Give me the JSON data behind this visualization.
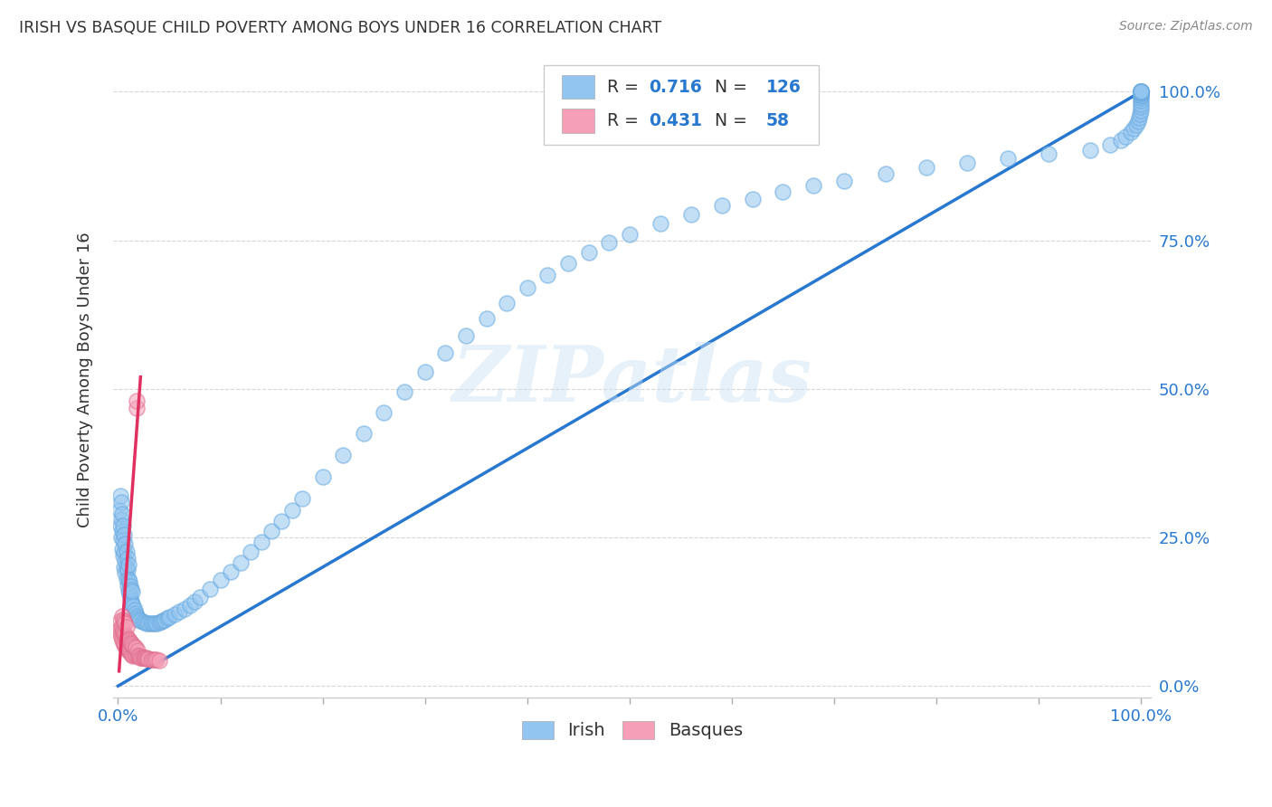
{
  "title": "IRISH VS BASQUE CHILD POVERTY AMONG BOYS UNDER 16 CORRELATION CHART",
  "source": "Source: ZipAtlas.com",
  "ylabel": "Child Poverty Among Boys Under 16",
  "irish_color": "#92c5f0",
  "irish_edge_color": "#6aaae0",
  "basque_color": "#f5a0b8",
  "basque_edge_color": "#e07090",
  "irish_line_color": "#2878d0",
  "basque_line_color": "#e03060",
  "ref_line_color": "#d0c8d8",
  "text_color_blue": "#2878d0",
  "text_color_dark": "#333333",
  "text_color_gray": "#888888",
  "irish_R": "0.716",
  "irish_N": "126",
  "basque_R": "0.431",
  "basque_N": "58",
  "legend_label_irish": "Irish",
  "legend_label_basque": "Basques",
  "watermark": "ZIPatlas",
  "irish_x": [
    0.001,
    0.002,
    0.002,
    0.003,
    0.003,
    0.003,
    0.004,
    0.004,
    0.004,
    0.005,
    0.005,
    0.005,
    0.006,
    0.006,
    0.006,
    0.007,
    0.007,
    0.007,
    0.008,
    0.008,
    0.008,
    0.009,
    0.009,
    0.009,
    0.01,
    0.01,
    0.01,
    0.011,
    0.011,
    0.012,
    0.012,
    0.013,
    0.013,
    0.014,
    0.014,
    0.015,
    0.016,
    0.017,
    0.018,
    0.019,
    0.02,
    0.022,
    0.024,
    0.026,
    0.028,
    0.03,
    0.032,
    0.034,
    0.036,
    0.038,
    0.04,
    0.042,
    0.044,
    0.046,
    0.048,
    0.05,
    0.055,
    0.06,
    0.065,
    0.07,
    0.075,
    0.08,
    0.09,
    0.1,
    0.11,
    0.12,
    0.13,
    0.14,
    0.15,
    0.16,
    0.17,
    0.18,
    0.2,
    0.22,
    0.24,
    0.26,
    0.28,
    0.3,
    0.32,
    0.34,
    0.36,
    0.38,
    0.4,
    0.42,
    0.44,
    0.46,
    0.48,
    0.5,
    0.53,
    0.56,
    0.59,
    0.62,
    0.65,
    0.68,
    0.71,
    0.75,
    0.79,
    0.83,
    0.87,
    0.91,
    0.95,
    0.97,
    0.98,
    0.985,
    0.99,
    0.993,
    0.995,
    0.997,
    0.998,
    0.999,
    1.0,
    1.0,
    1.0,
    1.0,
    1.0,
    1.0,
    1.0,
    1.0,
    1.0,
    1.0,
    1.0,
    1.0,
    1.0,
    1.0,
    1.0,
    1.0
  ],
  "irish_y": [
    0.295,
    0.27,
    0.32,
    0.25,
    0.28,
    0.31,
    0.23,
    0.26,
    0.29,
    0.22,
    0.245,
    0.27,
    0.2,
    0.225,
    0.255,
    0.19,
    0.21,
    0.24,
    0.18,
    0.2,
    0.225,
    0.17,
    0.195,
    0.215,
    0.16,
    0.18,
    0.205,
    0.155,
    0.175,
    0.148,
    0.168,
    0.142,
    0.162,
    0.138,
    0.158,
    0.135,
    0.128,
    0.122,
    0.118,
    0.115,
    0.112,
    0.11,
    0.108,
    0.107,
    0.106,
    0.105,
    0.105,
    0.105,
    0.105,
    0.106,
    0.107,
    0.108,
    0.11,
    0.112,
    0.114,
    0.116,
    0.12,
    0.125,
    0.13,
    0.136,
    0.142,
    0.15,
    0.163,
    0.178,
    0.192,
    0.208,
    0.225,
    0.242,
    0.26,
    0.278,
    0.296,
    0.315,
    0.352,
    0.389,
    0.425,
    0.46,
    0.495,
    0.528,
    0.56,
    0.59,
    0.618,
    0.645,
    0.67,
    0.692,
    0.712,
    0.73,
    0.746,
    0.76,
    0.778,
    0.794,
    0.808,
    0.82,
    0.832,
    0.842,
    0.85,
    0.862,
    0.872,
    0.88,
    0.888,
    0.895,
    0.902,
    0.91,
    0.918,
    0.925,
    0.932,
    0.938,
    0.944,
    0.95,
    0.956,
    0.962,
    0.968,
    0.974,
    0.98,
    0.985,
    0.99,
    0.993,
    0.995,
    0.997,
    0.998,
    0.999,
    1.0,
    1.0,
    1.0,
    1.0,
    1.0,
    1.0
  ],
  "basque_x": [
    0.001,
    0.002,
    0.002,
    0.003,
    0.003,
    0.004,
    0.004,
    0.004,
    0.005,
    0.005,
    0.005,
    0.006,
    0.006,
    0.006,
    0.007,
    0.007,
    0.007,
    0.008,
    0.008,
    0.008,
    0.009,
    0.009,
    0.01,
    0.01,
    0.011,
    0.011,
    0.012,
    0.012,
    0.013,
    0.013,
    0.014,
    0.014,
    0.015,
    0.015,
    0.016,
    0.016,
    0.017,
    0.017,
    0.018,
    0.018,
    0.019,
    0.019,
    0.02,
    0.021,
    0.022,
    0.023,
    0.024,
    0.025,
    0.026,
    0.027,
    0.028,
    0.029,
    0.03,
    0.032,
    0.034,
    0.036,
    0.038,
    0.04
  ],
  "basque_y": [
    0.095,
    0.088,
    0.11,
    0.082,
    0.1,
    0.078,
    0.095,
    0.118,
    0.074,
    0.092,
    0.112,
    0.07,
    0.088,
    0.108,
    0.067,
    0.085,
    0.105,
    0.064,
    0.082,
    0.1,
    0.062,
    0.08,
    0.06,
    0.078,
    0.058,
    0.076,
    0.056,
    0.074,
    0.054,
    0.072,
    0.052,
    0.07,
    0.05,
    0.068,
    0.052,
    0.066,
    0.052,
    0.064,
    0.468,
    0.48,
    0.052,
    0.06,
    0.05,
    0.05,
    0.048,
    0.048,
    0.048,
    0.047,
    0.047,
    0.047,
    0.046,
    0.046,
    0.046,
    0.045,
    0.045,
    0.044,
    0.044,
    0.043
  ],
  "irish_line_x": [
    0.0,
    1.0
  ],
  "irish_line_y": [
    0.0,
    1.0
  ],
  "basque_line_x": [
    0.001,
    0.022
  ],
  "basque_line_y": [
    0.025,
    0.52
  ],
  "ref_line_x": [
    0.0,
    1.0
  ],
  "ref_line_y": [
    0.0,
    1.0
  ],
  "xlim": [
    -0.005,
    1.01
  ],
  "ylim": [
    -0.02,
    1.05
  ]
}
